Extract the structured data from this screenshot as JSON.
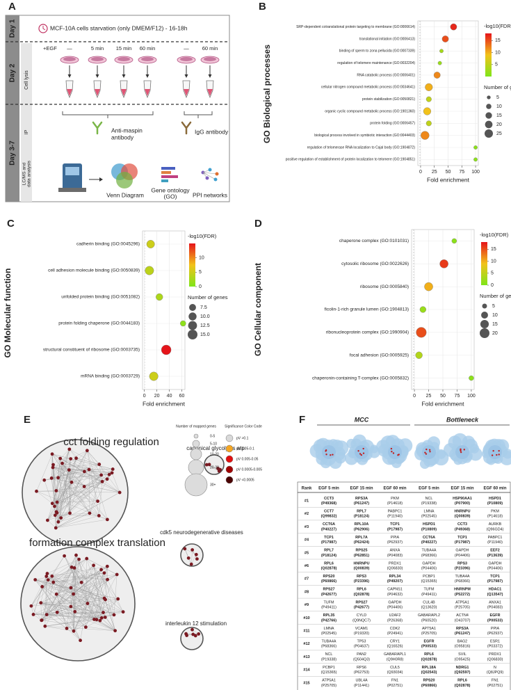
{
  "panel_labels": [
    "A",
    "B",
    "C",
    "D",
    "E",
    "F"
  ],
  "protocol": {
    "day1": "Day 1",
    "step1": "MCF-10A cells starvation (only DMEM/F12) - 16-18h",
    "day2": "Day 2",
    "egf": "+EGF",
    "times": [
      "—",
      "5 min",
      "15 min",
      "60 min",
      "—",
      "60 min"
    ],
    "lysis": "Cell lysis",
    "day3": "Day 3-7",
    "ip": "IP",
    "antibody1": [
      "Anti-maspin",
      "antibody"
    ],
    "antibody2": "IgG antibody",
    "lcms": [
      "LC/MS and",
      "data analysis"
    ],
    "outputs": [
      [
        "Venn Diagram"
      ],
      [
        "Gene ontology",
        "(GO)"
      ],
      [
        "PPI networks"
      ]
    ]
  },
  "chart_data": [
    {
      "type": "bubble",
      "title": "GO Biological processes",
      "x_label": "Fold enrichment",
      "categories": [
        "SRP-dependent cotranslational protein targeting to membrane (GO:0006614)",
        "translational initiation (GO:0006413)",
        "binding of sperm to zona pellucida (GO:0007339)",
        "regulation of telomere maintenance (GO:0032204)",
        "RNA catabolic process (GO:0006401)",
        "cellular nitrogen compound metabolic process (GO:0034641)",
        "protein stabilization (GO:0050821)",
        "organic cyclic compound metabolic process (GO:1901360)",
        "protein folding (GO:0006457)",
        "biological process involved in symbiotic interaction (GO:0044403)",
        "regulation of telomerase RNA localization to Cajal body (GO:1904872)",
        "positive regulation of establishment of protein localization to telomere (GO:1904851)"
      ],
      "values": [
        60,
        45,
        38,
        35,
        30,
        15,
        15,
        12,
        15,
        8,
        100,
        100
      ],
      "sizes": [
        15,
        15,
        5,
        5,
        15,
        20,
        10,
        20,
        10,
        25,
        5,
        5
      ],
      "fdr": [
        17,
        15,
        3,
        2,
        12,
        10,
        5,
        9,
        5,
        12,
        1,
        1
      ],
      "xlim": [
        -5,
        105
      ],
      "xticks": [
        0,
        25,
        50,
        75,
        100
      ],
      "colorbar": {
        "title": "-log10(FDR)",
        "lim": [
          0,
          18
        ],
        "ticks": [
          5,
          10,
          15
        ],
        "colors": [
          "#7fe51a",
          "#f2c21a",
          "#e5141a"
        ]
      },
      "size_legend": {
        "title": "Number of genes",
        "ticks": [
          5,
          10,
          15,
          20,
          25
        ]
      }
    },
    {
      "type": "bubble",
      "title": "GO Molecular function",
      "x_label": "Fold enrichment",
      "categories": [
        "cadherin binding (GO:0045296)",
        "cell adhesion molecule binding (GO:0050839)",
        "unfolded protein binding (GO:0051082)",
        "protein folding chaperone (GO:0044183)",
        "structural constituent of ribosome (GO:0003735)",
        "mRNA binding (GO:0003729)"
      ],
      "values": [
        10,
        8,
        24,
        62,
        35,
        15
      ],
      "sizes": [
        10,
        12,
        7.5,
        5,
        15,
        12
      ],
      "fdr": [
        5,
        4,
        3,
        1,
        15,
        5
      ],
      "xlim": [
        -3,
        65
      ],
      "xticks": [
        0,
        20,
        40,
        60
      ],
      "colorbar": {
        "title": "-log10(FDR)",
        "lim": [
          0,
          15
        ],
        "ticks": [
          0,
          5,
          10
        ],
        "colors": [
          "#7fe51a",
          "#f2c21a",
          "#e5141a"
        ]
      },
      "size_legend": {
        "title": "Number of genes",
        "ticks": [
          7.5,
          {
            "value": 10,
            "label": "10.0"
          },
          12.5,
          {
            "value": 15,
            "label": "15.0"
          }
        ]
      }
    },
    {
      "type": "bubble",
      "title": "GO Cellular component",
      "x_label": "Fold enrichment",
      "categories": [
        "chaperone complex (GO:0101031)",
        "cytosolic ribosome (GO:0022626)",
        "ribosome (GO:0005840)",
        "ficolin-1-rich granule lumen (GO:1904813)",
        "ribonucleoprotein complex (GO:1990904)",
        "focal adhesion (GO:0005925)",
        "chaperonin-containing T-complex (GO:0005832)"
      ],
      "values": [
        70,
        52,
        25,
        15,
        12,
        8,
        100
      ],
      "sizes": [
        5,
        15,
        15,
        8,
        22,
        10,
        5
      ],
      "fdr": [
        1,
        16,
        10,
        2,
        15,
        4,
        1
      ],
      "xlim": [
        -5,
        105
      ],
      "xticks": [
        0,
        25,
        50,
        75,
        100
      ],
      "colorbar": {
        "title": "-log10(FDR)",
        "lim": [
          0,
          18
        ],
        "ticks": [
          0,
          5,
          10,
          15
        ],
        "colors": [
          "#7fe51a",
          "#f2c21a",
          "#e5141a"
        ]
      },
      "size_legend": {
        "title": "Number of genes",
        "ticks": [
          5,
          10,
          15,
          20
        ]
      }
    }
  ],
  "network": {
    "clusters": [
      "cct folding regulation",
      "formation complex translation",
      "canonical glycolysis atp",
      "cdk5 neurodegenerative diseases",
      "interleukin 12 stimulation"
    ],
    "size_legend": {
      "title": "Number of mapped genes",
      "labels": [
        "0-5",
        "5-10",
        "10-20",
        "20-30",
        "30+"
      ]
    },
    "color_legend": {
      "title": "Significance Color Code",
      "labels": [
        "pV >0.1",
        "pV 0.05-0.1",
        "pV 0.005-0.05",
        "pV 0.0005-0.005",
        "pV <0.0005"
      ],
      "colors": [
        "#d9d9d9",
        "#f5a623",
        "#e01010",
        "#a00000",
        "#4a0000"
      ]
    }
  },
  "table": {
    "groups": [
      "MCC",
      "Bottleneck"
    ],
    "header": [
      "Rank",
      "EGF 5 min",
      "EGF 15 min",
      "EGF 60 min",
      "EGF 5 min",
      "EGF 15 min",
      "EGF 60 min"
    ],
    "rows": [
      {
        "rank": "#1",
        "cells": [
          [
            "CCT3",
            "(P49368)",
            "#e00000"
          ],
          [
            "RPS3A",
            "(P61247)",
            "#3a9a3a"
          ],
          [
            "PKM",
            "(P14618)",
            "#222222"
          ],
          [
            "NCL",
            "(P19338)",
            "#222222"
          ],
          [
            "HSP90AA1",
            "(P07900)",
            "#e00000"
          ],
          [
            "HSPD1",
            "(P10809)",
            "#e00000"
          ]
        ]
      },
      {
        "rank": "#2",
        "cells": [
          [
            "CCT7",
            "(Q99832)",
            "#e00000"
          ],
          [
            "RPL7",
            "(P18124)",
            "#3a9a3a"
          ],
          [
            "PABPC1",
            "(P11940)",
            "#222222"
          ],
          [
            "LMNA",
            "(P02545)",
            "#222222"
          ],
          [
            "HNRNPU",
            "(Q00839)",
            "#7030a0"
          ],
          [
            "PKM",
            "(P14618)",
            "#222222"
          ]
        ]
      },
      {
        "rank": "#3",
        "cells": [
          [
            "CCT6A",
            "(P40227)",
            "#e00000"
          ],
          [
            "RPL10A",
            "(P62906)",
            "#3a9a3a"
          ],
          [
            "TCP1",
            "(P17987)",
            "#e00000"
          ],
          [
            "HSPD1",
            "(P10809)",
            "#e00000"
          ],
          [
            "CCT3",
            "(P49368)",
            "#e00000"
          ],
          [
            "AURKB",
            "(Q96GD4)",
            "#222222"
          ]
        ]
      },
      {
        "rank": "#4",
        "cells": [
          [
            "TCP1",
            "(P17987)",
            "#e00000"
          ],
          [
            "RPL7A",
            "(P62424)",
            "#3a9a3a"
          ],
          [
            "PPIA",
            "(P62937)",
            "#222222"
          ],
          [
            "CCT6A",
            "(P40227)",
            "#e00000"
          ],
          [
            "TCP1",
            "(P17987)",
            "#e00000"
          ],
          [
            "PABPC1",
            "(P11940)",
            "#222222"
          ]
        ]
      },
      {
        "rank": "#5",
        "cells": [
          [
            "RPL7",
            "(P18124)",
            "#3a9a3a"
          ],
          [
            "RPS25",
            "(P62851)",
            "#3a9a3a"
          ],
          [
            "ANXA",
            "(P04083)",
            "#222222"
          ],
          [
            "TUBA4A",
            "(P68366)",
            "#222222"
          ],
          [
            "GAPDH",
            "(P04406)",
            "#222222"
          ],
          [
            "EEF2",
            "(P13639)",
            "#3a9a3a"
          ]
        ]
      },
      {
        "rank": "#6",
        "cells": [
          [
            "RPL6",
            "(Q02878)",
            "#3a9a3a"
          ],
          [
            "HNRNPU",
            "(Q00839)",
            "#7030a0"
          ],
          [
            "PRDX1",
            "(Q06830)",
            "#222222"
          ],
          [
            "GAPDH",
            "(P04406)",
            "#222222"
          ],
          [
            "RPS3",
            "(P23396)",
            "#3a9a3a"
          ],
          [
            "GAPDH",
            "(P04406)",
            "#222222"
          ]
        ]
      },
      {
        "rank": "#7",
        "cells": [
          [
            "RPS20",
            "(P60866)",
            "#3a9a3a"
          ],
          [
            "RPS3",
            "(P23396)",
            "#3a9a3a"
          ],
          [
            "RPL34",
            "(P49207)",
            "#3a9a3a"
          ],
          [
            "PCBP1",
            "(Q15365)",
            "#222222"
          ],
          [
            "TUBA4A",
            "(P68366)",
            "#222222"
          ],
          [
            "TCP1",
            "(P17987)",
            "#e00000"
          ]
        ]
      },
      {
        "rank": "#8",
        "cells": [
          [
            "RPS27",
            "(P42677)",
            "#3a9a3a"
          ],
          [
            "RPL6",
            "(Q02878)",
            "#3a9a3a"
          ],
          [
            "CAPNS1",
            "(P04632)",
            "#222222"
          ],
          [
            "TUFM",
            "(P49411)",
            "#222222"
          ],
          [
            "HNRNPM",
            "(P52272)",
            "#7030a0"
          ],
          [
            "HDAC1",
            "(Q13547)",
            "#000000"
          ]
        ]
      },
      {
        "rank": "#9",
        "cells": [
          [
            "TUFM",
            "(P49411)",
            "#222222"
          ],
          [
            "RPS27",
            "(P42677)",
            "#3a9a3a"
          ],
          [
            "GAPDH",
            "(P04406)",
            "#222222"
          ],
          [
            "CUL4B",
            "(Q13620)",
            "#222222"
          ],
          [
            "ATP5A1",
            "(P25705)",
            "#222222"
          ],
          [
            "ANXA1",
            "(P04083)",
            "#222222"
          ]
        ]
      },
      {
        "rank": "#10",
        "cells": [
          [
            "RPL35",
            "(P42766)",
            "#3a9a3a"
          ],
          [
            "CYLD",
            "(Q9NQC7)",
            "#222222"
          ],
          [
            "U2AF2",
            "(P26368)",
            "#222222"
          ],
          [
            "GABARAPL2",
            "(P60520)",
            "#222222"
          ],
          [
            "ACTN4",
            "(O43707)",
            "#222222"
          ],
          [
            "EGFR",
            "(P00533)",
            "#000000"
          ]
        ]
      },
      {
        "rank": "#11",
        "cells": [
          [
            "LMNA",
            "(P02545)",
            "#222222"
          ],
          [
            "VCAM1",
            "(P19320)",
            "#222222"
          ],
          [
            "CDK2",
            "(P24941)",
            "#222222"
          ],
          [
            "APT5A1",
            "(P25705)",
            "#222222"
          ],
          [
            "RPS3A",
            "(P61247)",
            "#3a9a3a"
          ],
          [
            "PPIA",
            "(P62937)",
            "#222222"
          ]
        ]
      },
      {
        "rank": "#12",
        "cells": [
          [
            "TUBA4A",
            "(P68366)",
            "#222222"
          ],
          [
            "TP53",
            "(P04637)",
            "#222222"
          ],
          [
            "CRY1",
            "(Q16526)",
            "#222222"
          ],
          [
            "EGFR",
            "(P00533)",
            "#000000"
          ],
          [
            "BAG2",
            "(O95816)",
            "#222222"
          ],
          [
            "ESR1",
            "(P03372)",
            "#222222"
          ]
        ]
      },
      {
        "rank": "#13",
        "cells": [
          [
            "NCL",
            "(P19338)",
            "#222222"
          ],
          [
            "PAN2",
            "(Q504Q3)",
            "#222222"
          ],
          [
            "GABARAPL1",
            "(Q9H0R8)",
            "#222222"
          ],
          [
            "RPL6",
            "(Q02878)",
            "#3a9a3a"
          ],
          [
            "SVIL",
            "(O95425)",
            "#222222"
          ],
          [
            "PRDX1",
            "(Q06830)",
            "#222222"
          ]
        ]
      },
      {
        "rank": "#14",
        "cells": [
          [
            "PCBP1",
            "(Q15365)",
            "#222222"
          ],
          [
            "RPS6",
            "(P62753)",
            "#222222"
          ],
          [
            "CUL5",
            "(Q93034)",
            "#222222"
          ],
          [
            "RPL18A",
            "(Q02543)",
            "#3a9a3a"
          ],
          [
            "NDRG1",
            "(Q92597)",
            "#2060c0"
          ],
          [
            "N",
            "(Q8JPQ9)",
            "#222222"
          ]
        ]
      },
      {
        "rank": "#15",
        "cells": [
          [
            "ATP5A1",
            "(P25705)",
            "#222222"
          ],
          [
            "UBL4A",
            "(P11441)",
            "#222222"
          ],
          [
            "FN1",
            "(P02751)",
            "#222222"
          ],
          [
            "RPS20",
            "(P60866)",
            "#3a9a3a"
          ],
          [
            "RPL6",
            "(Q02878)",
            "#3a9a3a"
          ],
          [
            "FN1",
            "(P02751)",
            "#222222"
          ]
        ]
      }
    ]
  }
}
